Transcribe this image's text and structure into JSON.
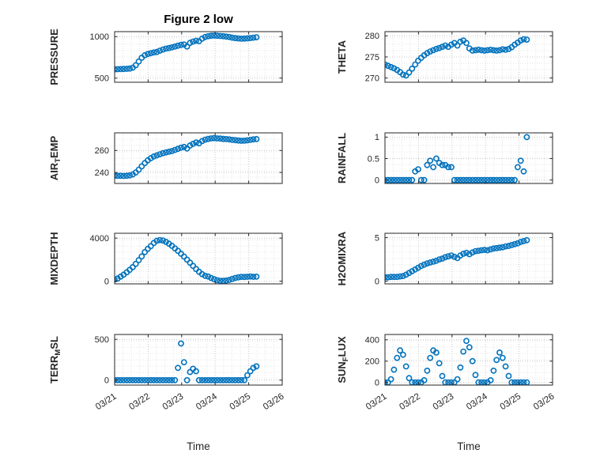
{
  "title": "Figure 2 low",
  "xlabel": "Time",
  "colors": {
    "marker": "#0072BD",
    "axis": "#262626",
    "grid_major": "#c9c9c9",
    "grid_minor": "#e4e4e4",
    "tick_text": "#262626",
    "background": "#ffffff"
  },
  "shared": {
    "xlim": [
      0,
      5
    ],
    "xtick_values": [
      0,
      1,
      2,
      3,
      4,
      5
    ],
    "xtick_labels": [
      "03/21",
      "03/22",
      "03/23",
      "03/24",
      "03/25",
      "03/26"
    ],
    "x": [
      0,
      0.09,
      0.18,
      0.27,
      0.36,
      0.45,
      0.54,
      0.63,
      0.72,
      0.81,
      0.9,
      0.99,
      1.08,
      1.17,
      1.26,
      1.35,
      1.44,
      1.53,
      1.62,
      1.71,
      1.8,
      1.89,
      1.98,
      2.07,
      2.16,
      2.25,
      2.34,
      2.43,
      2.52,
      2.61,
      2.7,
      2.79,
      2.88,
      2.97,
      3.06,
      3.15,
      3.24,
      3.33,
      3.42,
      3.51,
      3.6,
      3.69,
      3.78,
      3.87,
      3.96,
      4.05,
      4.14,
      4.23
    ]
  },
  "chart_data": [
    {
      "type": "scatter",
      "name": "pressure",
      "ylabel": "PRESSURE",
      "ylim": [
        450,
        1060
      ],
      "yticks": [
        500,
        1000
      ],
      "row": 0,
      "col": 0,
      "marker": "hollow-circle",
      "y": [
        605,
        607,
        608,
        610,
        612,
        615,
        625,
        655,
        700,
        745,
        775,
        790,
        800,
        808,
        815,
        830,
        845,
        855,
        862,
        870,
        880,
        890,
        900,
        905,
        880,
        925,
        940,
        950,
        945,
        975,
        995,
        1005,
        1010,
        1012,
        1010,
        1008,
        1005,
        1000,
        995,
        988,
        982,
        978,
        975,
        976,
        979,
        983,
        988,
        992
      ]
    },
    {
      "type": "scatter",
      "name": "theta",
      "ylabel": "THETA",
      "ylim": [
        269,
        281
      ],
      "yticks": [
        270,
        275,
        280
      ],
      "row": 0,
      "col": 1,
      "marker": "hollow-circle",
      "y": [
        273.2,
        272.9,
        272.6,
        272.3,
        271.9,
        271.4,
        270.8,
        270.6,
        271.3,
        272.2,
        273.2,
        274.1,
        274.8,
        275.4,
        275.9,
        276.3,
        276.6,
        276.9,
        277.1,
        277.4,
        277.7,
        277.4,
        277.9,
        278.3,
        277.7,
        278.6,
        278.9,
        278.3,
        277.0,
        276.5,
        276.6,
        276.7,
        276.6,
        276.5,
        276.6,
        276.7,
        276.6,
        276.5,
        276.6,
        276.8,
        276.7,
        276.9,
        277.3,
        277.9,
        278.4,
        278.9,
        279.2,
        279.1
      ]
    },
    {
      "type": "scatter",
      "name": "air-temp",
      "ylabel": "AIR_{T}EMP",
      "ylim": [
        230,
        276
      ],
      "yticks": [
        240,
        260
      ],
      "row": 1,
      "col": 0,
      "marker": "hollow-circle",
      "y": [
        237.0,
        236.9,
        237.0,
        236.8,
        237.0,
        237.3,
        238.2,
        240.0,
        242.5,
        245.5,
        248.5,
        251.0,
        253.0,
        254.5,
        255.5,
        256.5,
        257.5,
        258.2,
        258.8,
        259.5,
        260.5,
        261.5,
        262.5,
        263.2,
        261.8,
        264.5,
        266.0,
        267.2,
        266.5,
        268.5,
        269.8,
        270.5,
        271.0,
        271.2,
        271.0,
        270.8,
        270.5,
        270.3,
        270.0,
        269.6,
        269.3,
        269.0,
        268.8,
        268.9,
        269.2,
        269.6,
        270.0,
        270.3
      ]
    },
    {
      "type": "scatter",
      "name": "rainfall",
      "ylabel": "RAINFALL",
      "ylim": [
        -0.08,
        1.1
      ],
      "yticks": [
        0,
        0.5,
        1
      ],
      "row": 1,
      "col": 1,
      "marker": "hollow-circle",
      "y": [
        0,
        0,
        0,
        0,
        0,
        0,
        0,
        0,
        0,
        0,
        0.2,
        0.25,
        0,
        0,
        0.35,
        0.45,
        0.3,
        0.5,
        0.4,
        0.35,
        0.35,
        0.3,
        0.3,
        0,
        0,
        0,
        0,
        0,
        0,
        0,
        0,
        0,
        0,
        0,
        0,
        0,
        0,
        0,
        0,
        0,
        0,
        0,
        0,
        0,
        0.3,
        0.45,
        0.2,
        1.0
      ]
    },
    {
      "type": "scatter",
      "name": "mixdepth",
      "ylabel": "MIXDEPTH",
      "ylim": [
        -250,
        4450
      ],
      "yticks": [
        0,
        4000
      ],
      "row": 2,
      "col": 0,
      "marker": "hollow-circle",
      "y": [
        150,
        250,
        420,
        600,
        820,
        1050,
        1300,
        1600,
        1950,
        2300,
        2700,
        3000,
        3250,
        3550,
        3750,
        3820,
        3780,
        3650,
        3480,
        3280,
        3050,
        2820,
        2550,
        2280,
        2000,
        1720,
        1420,
        1130,
        870,
        650,
        500,
        430,
        300,
        180,
        90,
        40,
        30,
        60,
        120,
        210,
        300,
        360,
        400,
        390,
        410,
        430,
        410,
        420
      ]
    },
    {
      "type": "scatter",
      "name": "h2omixra",
      "ylabel": "H2OMIXRA",
      "ylim": [
        -0.3,
        5.5
      ],
      "yticks": [
        0,
        5
      ],
      "row": 2,
      "col": 1,
      "marker": "hollow-circle",
      "y": [
        0.45,
        0.45,
        0.5,
        0.5,
        0.5,
        0.55,
        0.6,
        0.75,
        0.95,
        1.15,
        1.35,
        1.55,
        1.75,
        1.9,
        2.05,
        2.15,
        2.25,
        2.35,
        2.5,
        2.6,
        2.75,
        2.85,
        2.95,
        2.8,
        2.65,
        2.95,
        3.15,
        3.25,
        3.1,
        3.3,
        3.45,
        3.5,
        3.55,
        3.6,
        3.55,
        3.65,
        3.75,
        3.8,
        3.85,
        3.9,
        4.0,
        4.05,
        4.15,
        4.25,
        4.35,
        4.5,
        4.6,
        4.7
      ]
    },
    {
      "type": "scatter",
      "name": "terr-msl",
      "ylabel": "TERR_{M}SL",
      "ylim": [
        -60,
        560
      ],
      "yticks": [
        0,
        500
      ],
      "row": 3,
      "col": 0,
      "marker": "hollow-circle",
      "y": [
        0,
        0,
        0,
        0,
        0,
        0,
        0,
        0,
        0,
        0,
        0,
        0,
        0,
        0,
        0,
        0,
        0,
        0,
        0,
        0,
        0,
        150,
        450,
        220,
        0,
        100,
        140,
        110,
        0,
        0,
        0,
        0,
        0,
        0,
        0,
        0,
        0,
        0,
        0,
        0,
        0,
        0,
        0,
        0,
        60,
        110,
        150,
        170
      ]
    },
    {
      "type": "scatter",
      "name": "sun-flux",
      "ylabel": "SUN_{F}LUX",
      "ylim": [
        -25,
        450
      ],
      "yticks": [
        0,
        200,
        400
      ],
      "row": 3,
      "col": 1,
      "marker": "hollow-circle",
      "y": [
        0,
        0,
        30,
        120,
        230,
        300,
        260,
        150,
        40,
        0,
        0,
        0,
        0,
        20,
        110,
        230,
        300,
        280,
        180,
        60,
        0,
        0,
        0,
        0,
        30,
        140,
        290,
        390,
        330,
        200,
        70,
        0,
        0,
        0,
        0,
        20,
        110,
        210,
        280,
        230,
        150,
        60,
        0,
        0,
        0,
        0,
        0,
        0
      ]
    }
  ]
}
